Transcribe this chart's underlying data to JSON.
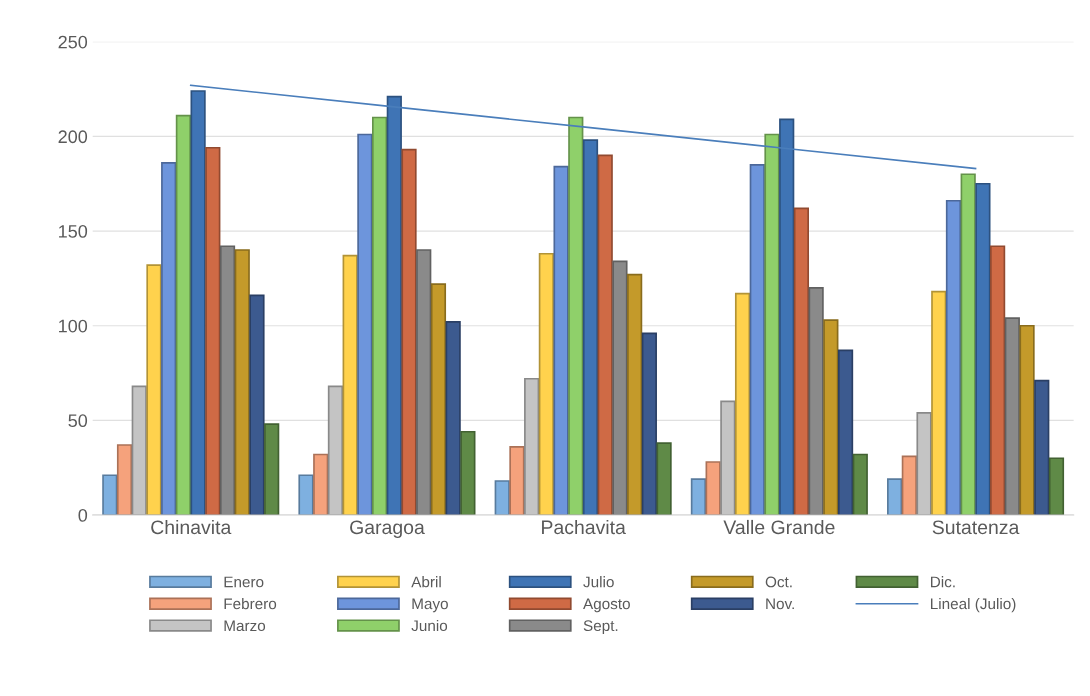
{
  "chart_data": {
    "type": "bar",
    "categories": [
      "Chinavita",
      "Garagoa",
      "Pachavita",
      "Valle Grande",
      "Sutatenza"
    ],
    "series": [
      {
        "name": "Enero",
        "color": "#7eb0e0",
        "values": [
          21,
          21,
          18,
          19,
          19
        ]
      },
      {
        "name": "Febrero",
        "color": "#f5a27c",
        "values": [
          37,
          32,
          36,
          28,
          31
        ]
      },
      {
        "name": "Marzo",
        "color": "#c4c4c4",
        "values": [
          68,
          68,
          72,
          60,
          54
        ]
      },
      {
        "name": "Abril",
        "color": "#ffd24d",
        "values": [
          132,
          137,
          138,
          117,
          118
        ]
      },
      {
        "name": "Mayo",
        "color": "#6d95dc",
        "values": [
          186,
          201,
          184,
          185,
          166
        ]
      },
      {
        "name": "Junio",
        "color": "#8fd06a",
        "values": [
          211,
          210,
          210,
          201,
          180
        ]
      },
      {
        "name": "Julio",
        "color": "#3f74b5",
        "values": [
          224,
          221,
          198,
          209,
          175
        ]
      },
      {
        "name": "Agosto",
        "color": "#cf6a45",
        "values": [
          194,
          193,
          190,
          162,
          142
        ]
      },
      {
        "name": "Sept.",
        "color": "#8a8a8a",
        "values": [
          142,
          140,
          134,
          120,
          104
        ]
      },
      {
        "name": "Oct.",
        "color": "#c49a2a",
        "values": [
          140,
          122,
          127,
          103,
          100
        ]
      },
      {
        "name": "Nov.",
        "color": "#3c5a8f",
        "values": [
          116,
          102,
          96,
          87,
          71
        ]
      },
      {
        "name": "Dic.",
        "color": "#5f8a47",
        "values": [
          48,
          44,
          38,
          32,
          30
        ]
      },
      {
        "name": "Lineal (Julio)",
        "type": "line",
        "color": "#4a7ebb",
        "values": [
          227,
          216,
          205,
          194,
          183
        ]
      }
    ],
    "ylim": [
      0,
      250
    ],
    "yticks": [
      0,
      50,
      100,
      150,
      200,
      250
    ],
    "grid": "y",
    "legend": "bottom",
    "line_style": "solid",
    "marker": "none"
  }
}
